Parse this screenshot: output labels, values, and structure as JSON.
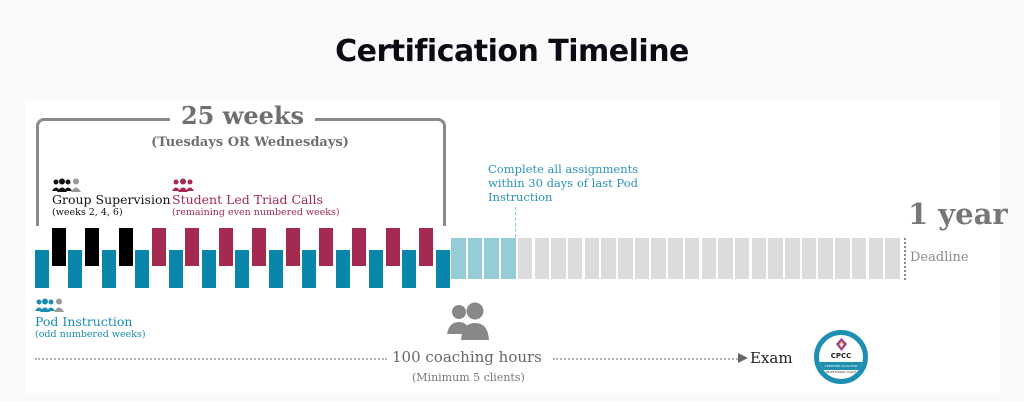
{
  "title": "Certification Timeline",
  "bracket": {
    "label": "25 weeks",
    "sublabel": "(Tuesdays OR Wednesdays)"
  },
  "legend": {
    "group_supervision": {
      "title": "Group Supervision",
      "subtitle": "(weeks 2, 4, 6)",
      "icon": "group-people-icon",
      "color": "#111111"
    },
    "triad_calls": {
      "title": "Student Led Triad Calls",
      "subtitle": "(remaining even numbered weeks)",
      "icon": "group-people-icon",
      "color": "#a52a52"
    },
    "pod_instruction": {
      "title": "Pod Instruction",
      "subtitle": "(odd numbered weeks)",
      "icon": "group-people-icon",
      "color": "#1a8db3"
    }
  },
  "assignments_note": "Complete all assignments within 30 days of last Pod Instruction",
  "deadline": {
    "label": "1 year",
    "sublabel": "Deadline"
  },
  "coaching": {
    "hours_label": "100 coaching hours",
    "sublabel": "(Minimum 5 clients)",
    "icon": "two-people-icon"
  },
  "exam_label": "Exam",
  "badge": {
    "name": "CPCC",
    "band": "CERTIFIED CO-ACTIVE",
    "footer": "PROFESSIONAL COACH"
  },
  "colors": {
    "pod": "#0a86ab",
    "group": "#000000",
    "triad": "#a52a52",
    "post_course": "#94cdd8",
    "remaining": "#dcdcdc",
    "bracket": "#8a8a8a"
  },
  "timeline": {
    "total_course_weeks": 25,
    "pod_weeks": [
      1,
      3,
      5,
      7,
      9,
      11,
      13,
      15,
      17,
      19,
      21,
      23,
      25
    ],
    "group_supervision_weeks": [
      2,
      4,
      6
    ],
    "triad_weeks": [
      8,
      10,
      12,
      14,
      16,
      18,
      20,
      22,
      24
    ],
    "assignment_window_boxes": 4,
    "remaining_boxes": 23
  }
}
